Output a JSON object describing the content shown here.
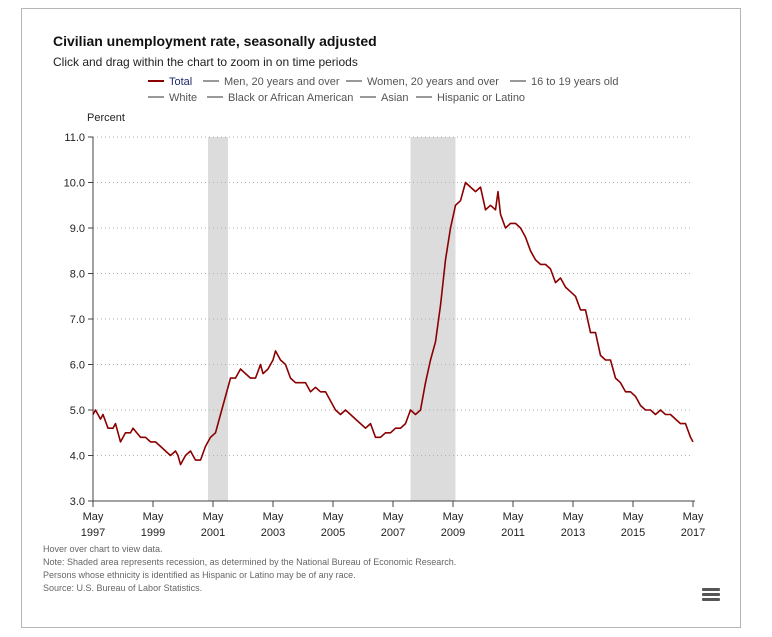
{
  "chart": {
    "title": "Civilian unemployment rate, seasonally adjusted",
    "subtitle": "Click and drag within the chart to zoom in on time periods",
    "notes": [
      "Hover over chart to view data.",
      "Note: Shaded area represents recession, as determined by the National Bureau of Economic Research.",
      "Persons whose ethnicity is identified as Hispanic or Latino may be of any race.",
      "Source: U.S. Bureau of Labor Statistics."
    ],
    "menu_icon": "hamburger-menu-icon"
  },
  "chart_data": {
    "type": "line",
    "ylabel": "Percent",
    "xlabel": "",
    "ylim": [
      3.0,
      11.0
    ],
    "yticks": [
      "3.0",
      "4.0",
      "5.0",
      "6.0",
      "7.0",
      "8.0",
      "9.0",
      "10.0",
      "11.0"
    ],
    "xlim": [
      "1997-05",
      "2017-05"
    ],
    "xticks": [
      {
        "month": "May",
        "year": "1997"
      },
      {
        "month": "May",
        "year": "1999"
      },
      {
        "month": "May",
        "year": "2001"
      },
      {
        "month": "May",
        "year": "2003"
      },
      {
        "month": "May",
        "year": "2005"
      },
      {
        "month": "May",
        "year": "2007"
      },
      {
        "month": "May",
        "year": "2009"
      },
      {
        "month": "May",
        "year": "2011"
      },
      {
        "month": "May",
        "year": "2013"
      },
      {
        "month": "May",
        "year": "2015"
      },
      {
        "month": "May",
        "year": "2017"
      }
    ],
    "grid": "horizontal dotted",
    "legend_position": "top",
    "legend": [
      {
        "name": "Total",
        "color": "#8b0000",
        "active": true
      },
      {
        "name": "Men, 20 years and over",
        "color": "#999999",
        "active": false
      },
      {
        "name": "Women, 20 years and over",
        "color": "#999999",
        "active": false
      },
      {
        "name": "16 to 19 years old",
        "color": "#999999",
        "active": false
      },
      {
        "name": "White",
        "color": "#999999",
        "active": false
      },
      {
        "name": "Black or African American",
        "color": "#999999",
        "active": false
      },
      {
        "name": "Asian",
        "color": "#999999",
        "active": false
      },
      {
        "name": "Hispanic or Latino",
        "color": "#999999",
        "active": false
      }
    ],
    "recessions": [
      {
        "start": "2001-03",
        "end": "2001-11"
      },
      {
        "start": "2007-12",
        "end": "2009-06"
      }
    ],
    "series": [
      {
        "name": "Total",
        "color": "#8b0000",
        "points": [
          [
            "1997-05",
            4.9
          ],
          [
            "1997-06",
            5.0
          ],
          [
            "1997-08",
            4.8
          ],
          [
            "1997-09",
            4.9
          ],
          [
            "1997-11",
            4.6
          ],
          [
            "1998-01",
            4.6
          ],
          [
            "1998-02",
            4.7
          ],
          [
            "1998-04",
            4.3
          ],
          [
            "1998-06",
            4.5
          ],
          [
            "1998-08",
            4.5
          ],
          [
            "1998-09",
            4.6
          ],
          [
            "1998-12",
            4.4
          ],
          [
            "1999-02",
            4.4
          ],
          [
            "1999-04",
            4.3
          ],
          [
            "1999-06",
            4.3
          ],
          [
            "1999-08",
            4.2
          ],
          [
            "1999-10",
            4.1
          ],
          [
            "1999-12",
            4.0
          ],
          [
            "2000-02",
            4.1
          ],
          [
            "2000-03",
            4.0
          ],
          [
            "2000-04",
            3.8
          ],
          [
            "2000-06",
            4.0
          ],
          [
            "2000-08",
            4.1
          ],
          [
            "2000-10",
            3.9
          ],
          [
            "2000-12",
            3.9
          ],
          [
            "2001-02",
            4.2
          ],
          [
            "2001-04",
            4.4
          ],
          [
            "2001-06",
            4.5
          ],
          [
            "2001-08",
            4.9
          ],
          [
            "2001-10",
            5.3
          ],
          [
            "2001-12",
            5.7
          ],
          [
            "2002-02",
            5.7
          ],
          [
            "2002-04",
            5.9
          ],
          [
            "2002-06",
            5.8
          ],
          [
            "2002-08",
            5.7
          ],
          [
            "2002-10",
            5.7
          ],
          [
            "2002-12",
            6.0
          ],
          [
            "2003-01",
            5.8
          ],
          [
            "2003-03",
            5.9
          ],
          [
            "2003-05",
            6.1
          ],
          [
            "2003-06",
            6.3
          ],
          [
            "2003-08",
            6.1
          ],
          [
            "2003-10",
            6.0
          ],
          [
            "2003-12",
            5.7
          ],
          [
            "2004-02",
            5.6
          ],
          [
            "2004-04",
            5.6
          ],
          [
            "2004-06",
            5.6
          ],
          [
            "2004-08",
            5.4
          ],
          [
            "2004-10",
            5.5
          ],
          [
            "2004-12",
            5.4
          ],
          [
            "2005-02",
            5.4
          ],
          [
            "2005-04",
            5.2
          ],
          [
            "2005-06",
            5.0
          ],
          [
            "2005-08",
            4.9
          ],
          [
            "2005-10",
            5.0
          ],
          [
            "2005-12",
            4.9
          ],
          [
            "2006-02",
            4.8
          ],
          [
            "2006-04",
            4.7
          ],
          [
            "2006-06",
            4.6
          ],
          [
            "2006-08",
            4.7
          ],
          [
            "2006-10",
            4.4
          ],
          [
            "2006-12",
            4.4
          ],
          [
            "2007-02",
            4.5
          ],
          [
            "2007-04",
            4.5
          ],
          [
            "2007-06",
            4.6
          ],
          [
            "2007-08",
            4.6
          ],
          [
            "2007-10",
            4.7
          ],
          [
            "2007-12",
            5.0
          ],
          [
            "2008-02",
            4.9
          ],
          [
            "2008-04",
            5.0
          ],
          [
            "2008-06",
            5.6
          ],
          [
            "2008-08",
            6.1
          ],
          [
            "2008-10",
            6.5
          ],
          [
            "2008-12",
            7.3
          ],
          [
            "2009-02",
            8.3
          ],
          [
            "2009-04",
            9.0
          ],
          [
            "2009-06",
            9.5
          ],
          [
            "2009-08",
            9.6
          ],
          [
            "2009-10",
            10.0
          ],
          [
            "2009-12",
            9.9
          ],
          [
            "2010-02",
            9.8
          ],
          [
            "2010-04",
            9.9
          ],
          [
            "2010-06",
            9.4
          ],
          [
            "2010-08",
            9.5
          ],
          [
            "2010-10",
            9.4
          ],
          [
            "2010-11",
            9.8
          ],
          [
            "2010-12",
            9.3
          ],
          [
            "2011-02",
            9.0
          ],
          [
            "2011-04",
            9.1
          ],
          [
            "2011-06",
            9.1
          ],
          [
            "2011-08",
            9.0
          ],
          [
            "2011-10",
            8.8
          ],
          [
            "2011-12",
            8.5
          ],
          [
            "2012-02",
            8.3
          ],
          [
            "2012-04",
            8.2
          ],
          [
            "2012-06",
            8.2
          ],
          [
            "2012-08",
            8.1
          ],
          [
            "2012-10",
            7.8
          ],
          [
            "2012-12",
            7.9
          ],
          [
            "2013-02",
            7.7
          ],
          [
            "2013-04",
            7.6
          ],
          [
            "2013-06",
            7.5
          ],
          [
            "2013-08",
            7.2
          ],
          [
            "2013-10",
            7.2
          ],
          [
            "2013-12",
            6.7
          ],
          [
            "2014-02",
            6.7
          ],
          [
            "2014-04",
            6.2
          ],
          [
            "2014-06",
            6.1
          ],
          [
            "2014-08",
            6.1
          ],
          [
            "2014-10",
            5.7
          ],
          [
            "2014-12",
            5.6
          ],
          [
            "2015-02",
            5.4
          ],
          [
            "2015-04",
            5.4
          ],
          [
            "2015-06",
            5.3
          ],
          [
            "2015-08",
            5.1
          ],
          [
            "2015-10",
            5.0
          ],
          [
            "2015-12",
            5.0
          ],
          [
            "2016-02",
            4.9
          ],
          [
            "2016-04",
            5.0
          ],
          [
            "2016-06",
            4.9
          ],
          [
            "2016-08",
            4.9
          ],
          [
            "2016-10",
            4.8
          ],
          [
            "2016-12",
            4.7
          ],
          [
            "2017-02",
            4.7
          ],
          [
            "2017-04",
            4.4
          ],
          [
            "2017-05",
            4.3
          ]
        ]
      }
    ]
  }
}
